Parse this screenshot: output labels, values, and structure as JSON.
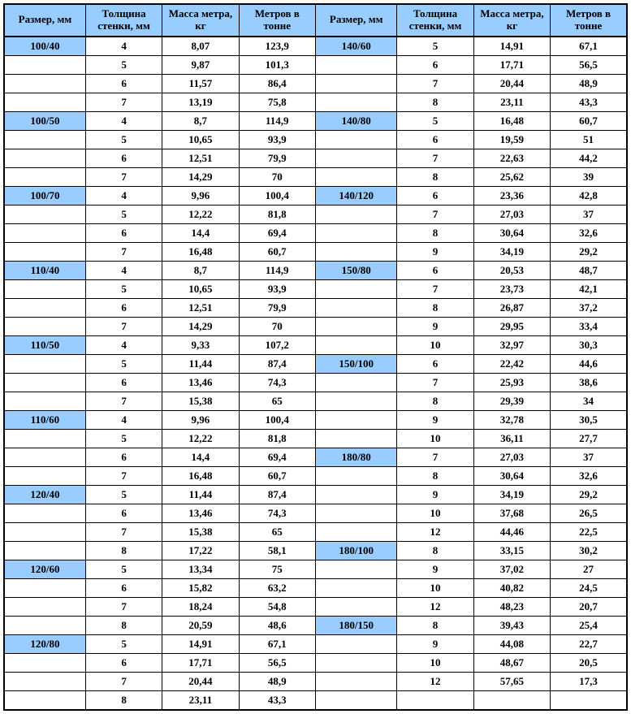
{
  "colors": {
    "header_bg": "#99ccff",
    "border": "#000000",
    "bg": "#ffffff"
  },
  "headers": {
    "size": "Размер, мм",
    "thickness": "Толщина стенки, мм",
    "mass": "Масса метра, кг",
    "mpt": "Метров в тонне"
  },
  "left": [
    {
      "size": "100/40",
      "t": "4",
      "m": "8,07",
      "p": "123,9"
    },
    {
      "size": "",
      "t": "5",
      "m": "9,87",
      "p": "101,3"
    },
    {
      "size": "",
      "t": "6",
      "m": "11,57",
      "p": "86,4"
    },
    {
      "size": "",
      "t": "7",
      "m": "13,19",
      "p": "75,8"
    },
    {
      "size": "100/50",
      "t": "4",
      "m": "8,7",
      "p": "114,9"
    },
    {
      "size": "",
      "t": "5",
      "m": "10,65",
      "p": "93,9"
    },
    {
      "size": "",
      "t": "6",
      "m": "12,51",
      "p": "79,9"
    },
    {
      "size": "",
      "t": "7",
      "m": "14,29",
      "p": "70"
    },
    {
      "size": "100/70",
      "t": "4",
      "m": "9,96",
      "p": "100,4"
    },
    {
      "size": "",
      "t": "5",
      "m": "12,22",
      "p": "81,8"
    },
    {
      "size": "",
      "t": "6",
      "m": "14,4",
      "p": "69,4"
    },
    {
      "size": "",
      "t": "7",
      "m": "16,48",
      "p": "60,7"
    },
    {
      "size": "110/40",
      "t": "4",
      "m": "8,7",
      "p": "114,9"
    },
    {
      "size": "",
      "t": "5",
      "m": "10,65",
      "p": "93,9"
    },
    {
      "size": "",
      "t": "6",
      "m": "12,51",
      "p": "79,9"
    },
    {
      "size": "",
      "t": "7",
      "m": "14,29",
      "p": "70"
    },
    {
      "size": "110/50",
      "t": "4",
      "m": "9,33",
      "p": "107,2"
    },
    {
      "size": "",
      "t": "5",
      "m": "11,44",
      "p": "87,4"
    },
    {
      "size": "",
      "t": "6",
      "m": "13,46",
      "p": "74,3"
    },
    {
      "size": "",
      "t": "7",
      "m": "15,38",
      "p": "65"
    },
    {
      "size": "110/60",
      "t": "4",
      "m": "9,96",
      "p": "100,4"
    },
    {
      "size": "",
      "t": "5",
      "m": "12,22",
      "p": "81,8"
    },
    {
      "size": "",
      "t": "6",
      "m": "14,4",
      "p": "69,4"
    },
    {
      "size": "",
      "t": "7",
      "m": "16,48",
      "p": "60,7"
    },
    {
      "size": "120/40",
      "t": "5",
      "m": "11,44",
      "p": "87,4"
    },
    {
      "size": "",
      "t": "6",
      "m": "13,46",
      "p": "74,3"
    },
    {
      "size": "",
      "t": "7",
      "m": "15,38",
      "p": "65"
    },
    {
      "size": "",
      "t": "8",
      "m": "17,22",
      "p": "58,1"
    },
    {
      "size": "120/60",
      "t": "5",
      "m": "13,34",
      "p": "75"
    },
    {
      "size": "",
      "t": "6",
      "m": "15,82",
      "p": "63,2"
    },
    {
      "size": "",
      "t": "7",
      "m": "18,24",
      "p": "54,8"
    },
    {
      "size": "",
      "t": "8",
      "m": "20,59",
      "p": "48,6"
    },
    {
      "size": "120/80",
      "t": "5",
      "m": "14,91",
      "p": "67,1"
    },
    {
      "size": "",
      "t": "6",
      "m": "17,71",
      "p": "56,5"
    },
    {
      "size": "",
      "t": "7",
      "m": "20,44",
      "p": "48,9"
    },
    {
      "size": "",
      "t": "8",
      "m": "23,11",
      "p": "43,3"
    }
  ],
  "right": [
    {
      "size": "140/60",
      "t": "5",
      "m": "14,91",
      "p": "67,1"
    },
    {
      "size": "",
      "t": "6",
      "m": "17,71",
      "p": "56,5"
    },
    {
      "size": "",
      "t": "7",
      "m": "20,44",
      "p": "48,9"
    },
    {
      "size": "",
      "t": "8",
      "m": "23,11",
      "p": "43,3"
    },
    {
      "size": "140/80",
      "t": "5",
      "m": "16,48",
      "p": "60,7"
    },
    {
      "size": "",
      "t": "6",
      "m": "19,59",
      "p": "51"
    },
    {
      "size": "",
      "t": "7",
      "m": "22,63",
      "p": "44,2"
    },
    {
      "size": "",
      "t": "8",
      "m": "25,62",
      "p": "39"
    },
    {
      "size": "140/120",
      "t": "6",
      "m": "23,36",
      "p": "42,8"
    },
    {
      "size": "",
      "t": "7",
      "m": "27,03",
      "p": "37"
    },
    {
      "size": "",
      "t": "8",
      "m": "30,64",
      "p": "32,6"
    },
    {
      "size": "",
      "t": "9",
      "m": "34,19",
      "p": "29,2"
    },
    {
      "size": "150/80",
      "t": "6",
      "m": "20,53",
      "p": "48,7"
    },
    {
      "size": "",
      "t": "7",
      "m": "23,73",
      "p": "42,1"
    },
    {
      "size": "",
      "t": "8",
      "m": "26,87",
      "p": "37,2"
    },
    {
      "size": "",
      "t": "9",
      "m": "29,95",
      "p": "33,4"
    },
    {
      "size": "",
      "t": "10",
      "m": "32,97",
      "p": "30,3"
    },
    {
      "size": "150/100",
      "t": "6",
      "m": "22,42",
      "p": "44,6"
    },
    {
      "size": "",
      "t": "7",
      "m": "25,93",
      "p": "38,6"
    },
    {
      "size": "",
      "t": "8",
      "m": "29,39",
      "p": "34"
    },
    {
      "size": "",
      "t": "9",
      "m": "32,78",
      "p": "30,5"
    },
    {
      "size": "",
      "t": "10",
      "m": "36,11",
      "p": "27,7"
    },
    {
      "size": "180/80",
      "t": "7",
      "m": "27,03",
      "p": "37"
    },
    {
      "size": "",
      "t": "8",
      "m": "30,64",
      "p": "32,6"
    },
    {
      "size": "",
      "t": "9",
      "m": "34,19",
      "p": "29,2"
    },
    {
      "size": "",
      "t": "10",
      "m": "37,68",
      "p": "26,5"
    },
    {
      "size": "",
      "t": "12",
      "m": "44,46",
      "p": "22,5"
    },
    {
      "size": "180/100",
      "t": "8",
      "m": "33,15",
      "p": "30,2"
    },
    {
      "size": "",
      "t": "9",
      "m": "37,02",
      "p": "27"
    },
    {
      "size": "",
      "t": "10",
      "m": "40,82",
      "p": "24,5"
    },
    {
      "size": "",
      "t": "12",
      "m": "48,23",
      "p": "20,7"
    },
    {
      "size": "180/150",
      "t": "8",
      "m": "39,43",
      "p": "25,4"
    },
    {
      "size": "",
      "t": "9",
      "m": "44,08",
      "p": "22,7"
    },
    {
      "size": "",
      "t": "10",
      "m": "48,67",
      "p": "20,5"
    },
    {
      "size": "",
      "t": "12",
      "m": "57,65",
      "p": "17,3"
    },
    {
      "size": "",
      "t": "",
      "m": "",
      "p": ""
    }
  ]
}
